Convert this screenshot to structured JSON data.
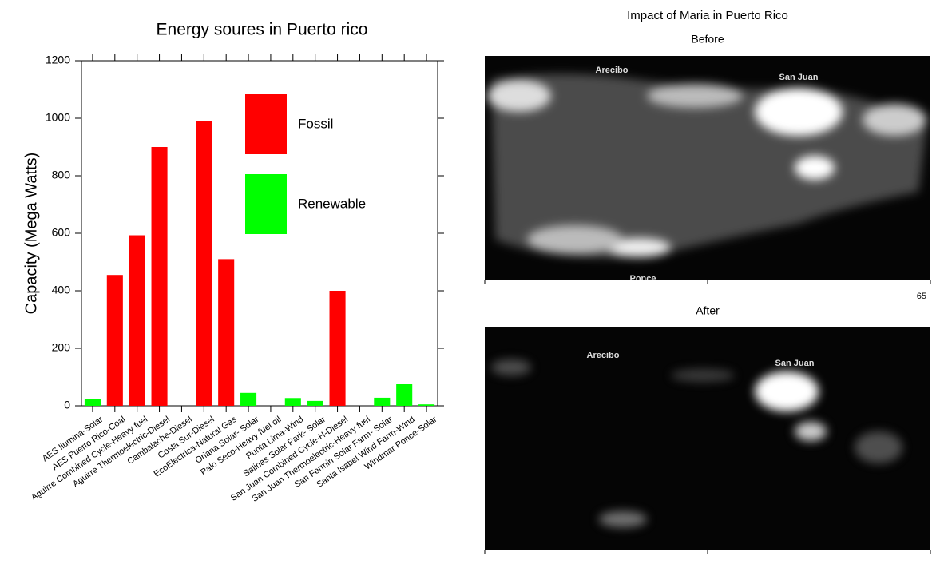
{
  "chart_data": {
    "type": "bar",
    "title": "Energy soures in Puerto rico",
    "y_label": "Capacity  (Mega Watts)",
    "categories": [
      "AES Ilumina-Solar",
      "AES Puerto Rico-Coal",
      "Aguirre Combined Cycle-Heavy fuel",
      "Aguirre Thermoelectric-Diesel",
      "Cambalache-Diesel",
      "Costa Sur-Diesel",
      "EcoElectrica-Natural Gas",
      "Oriana Solar- Solar",
      "Palo Seco-Heavy fuel oil",
      "Punta Lima-Wind",
      "Salinas Solar Park- Solar",
      "San Juan Combined Cycle-H-Diesel",
      "San Juan Thermoelectric-Heavy fuel",
      "San Fermin Solar Farm- Solar",
      "Santa Isabel Wind Farm-Wind",
      "Windmar Ponce-Solar"
    ],
    "values": [
      25,
      455,
      593,
      900,
      0,
      990,
      510,
      45,
      0,
      27,
      17,
      400,
      0,
      28,
      75,
      5
    ],
    "colors": [
      "#00ff00",
      "#ff0000",
      "#ff0000",
      "#ff0000",
      "#ff0000",
      "#ff0000",
      "#ff0000",
      "#00ff00",
      "#00ff00",
      "#00ff00",
      "#00ff00",
      "#ff0000",
      "#ff0000",
      "#00ff00",
      "#00ff00",
      "#00ff00"
    ],
    "legend": [
      {
        "name": "Fossil",
        "color": "#ff0000"
      },
      {
        "name": "Renewable",
        "color": "#00ff00"
      }
    ],
    "ylim": [
      0,
      1200
    ],
    "yticks": [
      0,
      200,
      400,
      600,
      800,
      1000,
      1200
    ]
  },
  "images": {
    "title": "Impact of Maria in Puerto Rico",
    "note": "65",
    "panels": [
      {
        "title": "Before",
        "labels": [
          "Arecibo",
          "San Juan",
          "Ponce"
        ]
      },
      {
        "title": "After",
        "labels": [
          "Arecibo",
          "San Juan"
        ]
      }
    ]
  }
}
